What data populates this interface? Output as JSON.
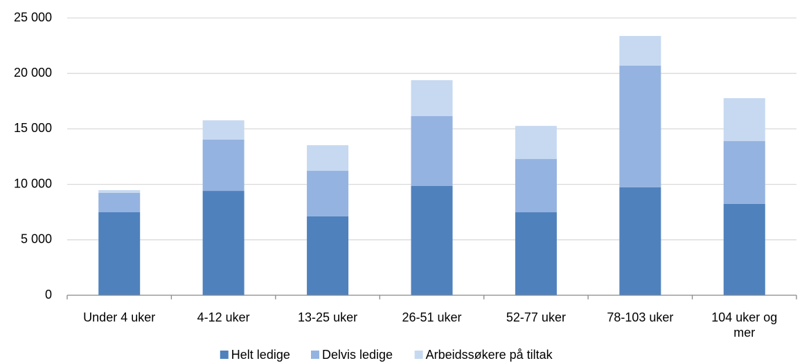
{
  "chart_data": {
    "type": "stacked_bar",
    "categories": [
      "Under 4 uker",
      "4-12 uker",
      "13-25 uker",
      "26-51 uker",
      "52-77 uker",
      "78-103 uker",
      "104 uker og mer"
    ],
    "series": [
      {
        "name": "Helt ledige",
        "color": "#4f81bd",
        "values": [
          7500,
          9410,
          7110,
          9850,
          7480,
          9730,
          8230
        ]
      },
      {
        "name": "Delvis ledige",
        "color": "#95b3e0",
        "values": [
          1730,
          4620,
          4110,
          6300,
          4800,
          10970,
          5670
        ]
      },
      {
        "name": "Arbeidssøkere på tiltak",
        "color": "#c6d9f1",
        "values": [
          250,
          1740,
          2310,
          3240,
          2990,
          2680,
          3870
        ]
      }
    ],
    "ylim": [
      0,
      25000
    ],
    "yticks": [
      0,
      {
        "value": 5000,
        "label": "5 000"
      },
      {
        "value": 10000,
        "label": "10 000"
      },
      {
        "value": 15000,
        "label": "15 000"
      },
      {
        "value": 20000,
        "label": "20 000"
      },
      {
        "value": 25000,
        "label": "25 000"
      }
    ],
    "grid": true,
    "legend": "bottom"
  }
}
